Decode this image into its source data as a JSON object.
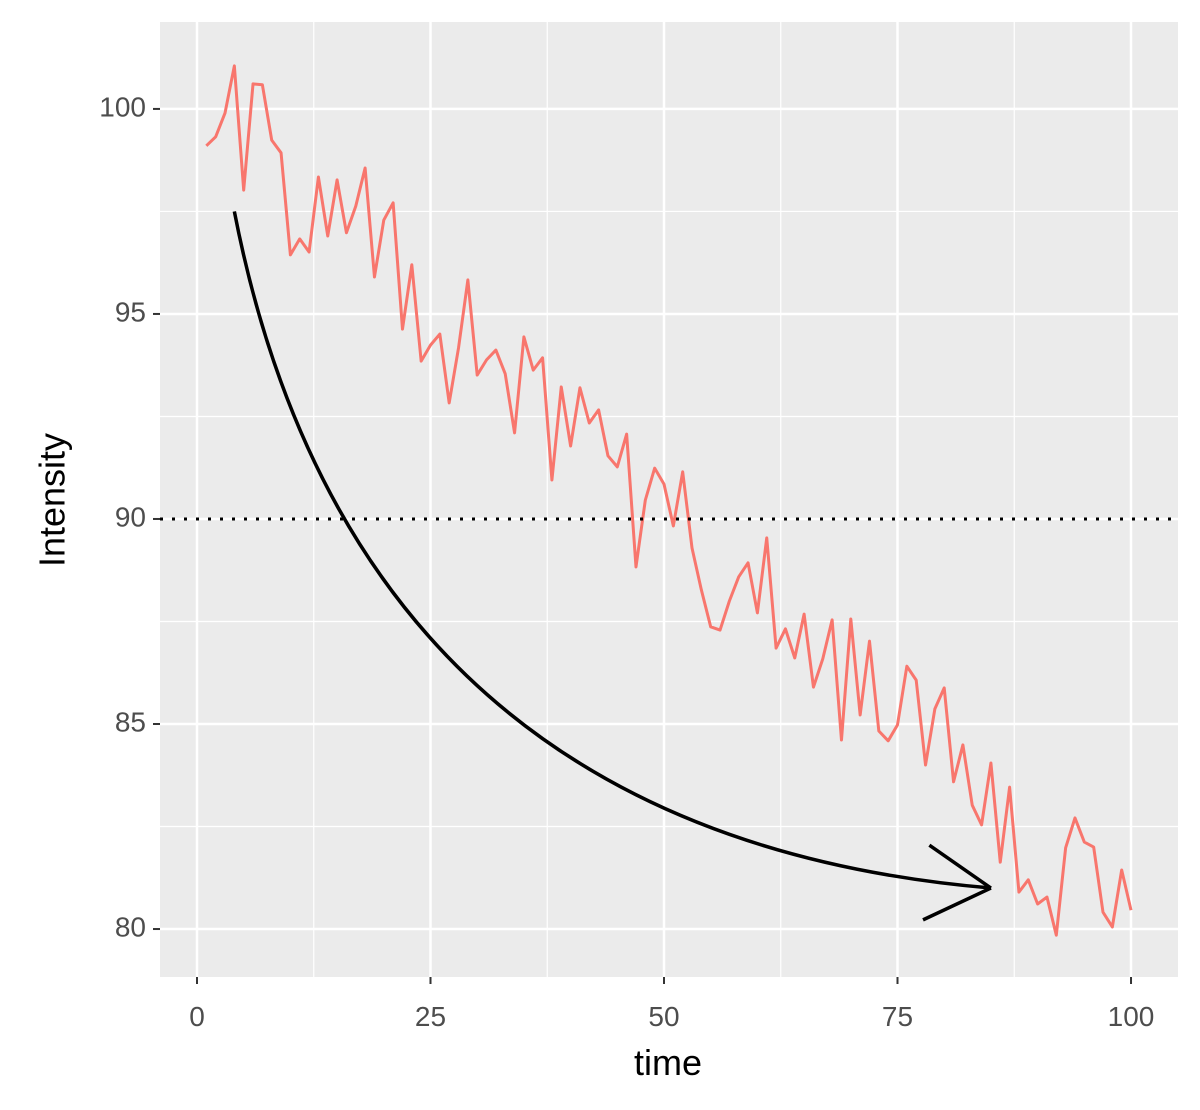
{
  "chart_data": {
    "type": "line",
    "x_label": "time",
    "y_label": "Intensity",
    "x": [
      1,
      2,
      3,
      4,
      5,
      6,
      7,
      8,
      9,
      10,
      11,
      12,
      13,
      14,
      15,
      16,
      17,
      18,
      19,
      20,
      21,
      22,
      23,
      24,
      25,
      26,
      27,
      28,
      29,
      30,
      31,
      32,
      33,
      34,
      35,
      36,
      37,
      38,
      39,
      40,
      41,
      42,
      43,
      44,
      45,
      46,
      47,
      48,
      49,
      50,
      51,
      52,
      53,
      54,
      55,
      56,
      57,
      58,
      59,
      60,
      61,
      62,
      63,
      64,
      65,
      66,
      67,
      68,
      69,
      70,
      71,
      72,
      73,
      74,
      75,
      76,
      77,
      78,
      79,
      80,
      81,
      82,
      83,
      84,
      85,
      86,
      87,
      88,
      89,
      90,
      91,
      92,
      93,
      94,
      95,
      96,
      97,
      98,
      99,
      100
    ],
    "series": [
      {
        "color": "#F8766D",
        "values": [
          99.1,
          99.32,
          99.9,
          101.05,
          98.02,
          100.61,
          100.59,
          99.24,
          98.93,
          96.44,
          96.83,
          96.51,
          98.34,
          96.9,
          98.27,
          96.98,
          97.63,
          98.56,
          95.9,
          97.29,
          97.71,
          94.63,
          96.2,
          93.85,
          94.24,
          94.51,
          92.83,
          94.17,
          95.83,
          93.51,
          93.88,
          94.12,
          93.54,
          92.1,
          94.44,
          93.63,
          93.93,
          90.95,
          93.22,
          91.78,
          93.2,
          92.34,
          92.66,
          91.54,
          91.27,
          92.07,
          88.83,
          90.46,
          91.24,
          90.85,
          89.83,
          91.15,
          89.29,
          88.27,
          87.37,
          87.29,
          88.0,
          88.59,
          88.93,
          87.71,
          89.54,
          86.85,
          87.32,
          86.61,
          87.68,
          85.9,
          86.59,
          87.54,
          84.61,
          87.56,
          85.22,
          87.02,
          84.83,
          84.59,
          84.98,
          86.41,
          86.07,
          84.0,
          85.37,
          85.88,
          83.59,
          84.49,
          83.02,
          82.54,
          84.05,
          81.63,
          83.46,
          80.9,
          81.2,
          80.61,
          80.78,
          79.85,
          81.98,
          82.71,
          82.12,
          82.0,
          80.41,
          80.05,
          81.44,
          80.46
        ]
      }
    ],
    "hline": 90,
    "arrow": {
      "x": [
        4,
        85
      ],
      "y": [
        97.5,
        81
      ]
    },
    "xlim": [
      -3.96,
      105.03
    ],
    "ylim": [
      78.83,
      102.12
    ],
    "xticks": [
      0,
      25,
      50,
      75,
      100
    ],
    "yticks": [
      80,
      85,
      90,
      95,
      100
    ],
    "grid": true
  }
}
